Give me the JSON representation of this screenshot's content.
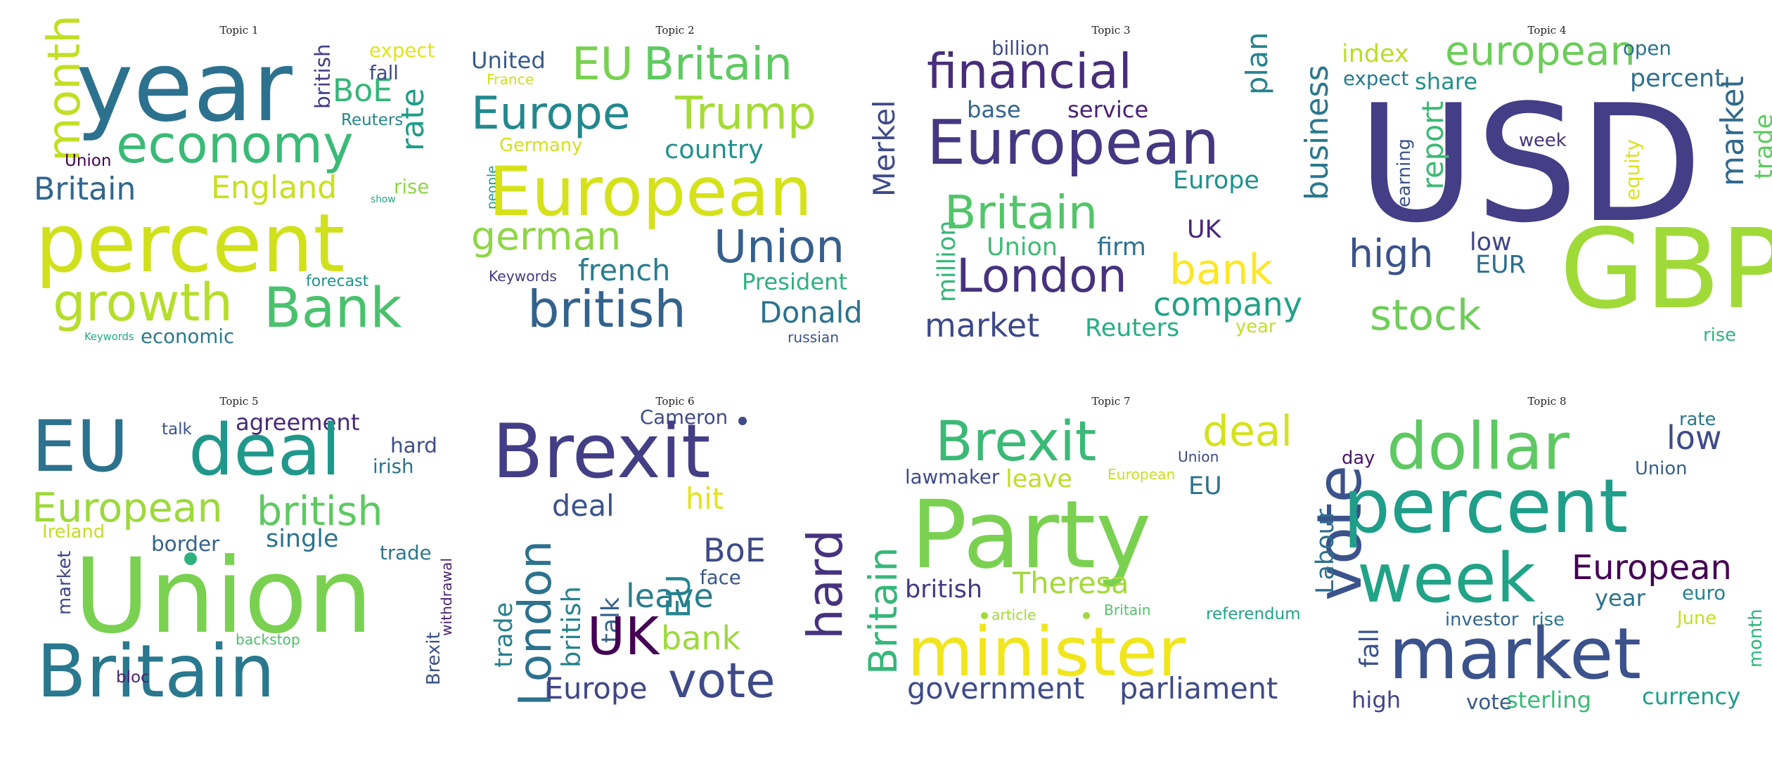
{
  "figure": {
    "panels": [
      {
        "title": "Topic 1",
        "words": [
          {
            "text": "year",
            "color": "#2c728e"
          },
          {
            "text": "percent",
            "color": "#d0e11c"
          },
          {
            "text": "economy",
            "color": "#3aba76"
          },
          {
            "text": "growth",
            "color": "#b5de2b"
          },
          {
            "text": "Bank",
            "color": "#4ac16d"
          },
          {
            "text": "Britain",
            "color": "#31668e"
          },
          {
            "text": "England",
            "color": "#c8e020"
          },
          {
            "text": "month",
            "color": "#c2df23"
          },
          {
            "text": "BoE",
            "color": "#35b779"
          },
          {
            "text": "rate",
            "color": "#1f9e89"
          },
          {
            "text": "british",
            "color": "#433e85"
          },
          {
            "text": "expect",
            "color": "#e2e418"
          },
          {
            "text": "fall",
            "color": "#3f4889"
          },
          {
            "text": "Reuters",
            "color": "#25858e"
          },
          {
            "text": "rise",
            "color": "#8fd744"
          },
          {
            "text": "Union",
            "color": "#440154"
          },
          {
            "text": "forecast",
            "color": "#1f968b"
          },
          {
            "text": "economic",
            "color": "#2a788e"
          },
          {
            "text": "Keywords",
            "color": "#22a785"
          },
          {
            "text": "show",
            "color": "#22a785"
          }
        ]
      },
      {
        "title": "Topic 2",
        "words": [
          {
            "text": "United",
            "color": "#365c8d"
          },
          {
            "text": "France",
            "color": "#cde11d"
          },
          {
            "text": "EU",
            "color": "#7ad151"
          },
          {
            "text": "Britain",
            "color": "#5ec962"
          },
          {
            "text": "Europe",
            "color": "#23888e"
          },
          {
            "text": "Trump",
            "color": "#a5db36"
          },
          {
            "text": "Germany",
            "color": "#d2e21b"
          },
          {
            "text": "country",
            "color": "#21918c"
          },
          {
            "text": "Merkel",
            "color": "#3e4a89"
          },
          {
            "text": "people",
            "color": "#1f9a8a"
          },
          {
            "text": "European",
            "color": "#d5e21a"
          },
          {
            "text": "german",
            "color": "#8ed645"
          },
          {
            "text": "Union",
            "color": "#355f8d"
          },
          {
            "text": "french",
            "color": "#287d8e"
          },
          {
            "text": "President",
            "color": "#2db27d"
          },
          {
            "text": "Keywords",
            "color": "#443983"
          },
          {
            "text": "british",
            "color": "#33638d"
          },
          {
            "text": "Donald",
            "color": "#2c728e"
          },
          {
            "text": "russian",
            "color": "#3b528b"
          }
        ]
      },
      {
        "title": "Topic 3",
        "words": [
          {
            "text": "billion",
            "color": "#3e4a89"
          },
          {
            "text": "financial",
            "color": "#472d7b"
          },
          {
            "text": "plan",
            "color": "#26828e"
          },
          {
            "text": "business",
            "color": "#2a788e"
          },
          {
            "text": "base",
            "color": "#32658e"
          },
          {
            "text": "service",
            "color": "#482173"
          },
          {
            "text": "European",
            "color": "#453781"
          },
          {
            "text": "Europe",
            "color": "#21918c"
          },
          {
            "text": "million",
            "color": "#35b779"
          },
          {
            "text": "Britain",
            "color": "#52c569"
          },
          {
            "text": "UK",
            "color": "#482475"
          },
          {
            "text": "Union",
            "color": "#3dbc74"
          },
          {
            "text": "firm",
            "color": "#2c728e"
          },
          {
            "text": "London",
            "color": "#46327e"
          },
          {
            "text": "bank",
            "color": "#fde725"
          },
          {
            "text": "company",
            "color": "#20a386"
          },
          {
            "text": "market",
            "color": "#3e4989"
          },
          {
            "text": "Reuters",
            "color": "#29af7f"
          },
          {
            "text": "year",
            "color": "#c0df25"
          }
        ]
      },
      {
        "title": "Topic 4",
        "words": [
          {
            "text": "index",
            "color": "#b8de29"
          },
          {
            "text": "european",
            "color": "#6ccd5a"
          },
          {
            "text": "open",
            "color": "#2c728e"
          },
          {
            "text": "expect",
            "color": "#2a788e"
          },
          {
            "text": "share",
            "color": "#21918c"
          },
          {
            "text": "percent",
            "color": "#2d708e"
          },
          {
            "text": "USD",
            "color": "#433e85"
          },
          {
            "text": "report",
            "color": "#3aba76"
          },
          {
            "text": "week",
            "color": "#46337f"
          },
          {
            "text": "equity",
            "color": "#dae319"
          },
          {
            "text": "market",
            "color": "#306a8e"
          },
          {
            "text": "trade",
            "color": "#5ec962"
          },
          {
            "text": "earning",
            "color": "#3b528b"
          },
          {
            "text": "high",
            "color": "#3b528b"
          },
          {
            "text": "low",
            "color": "#414487"
          },
          {
            "text": "EUR",
            "color": "#2e6f8e"
          },
          {
            "text": "GBP",
            "color": "#a0da39"
          },
          {
            "text": "stock",
            "color": "#6ece58"
          },
          {
            "text": "rise",
            "color": "#2fb47c"
          }
        ]
      },
      {
        "title": "Topic 5",
        "words": [
          {
            "text": "EU",
            "color": "#2c728e"
          },
          {
            "text": "talk",
            "color": "#3b528b"
          },
          {
            "text": "agreement",
            "color": "#482878"
          },
          {
            "text": "deal",
            "color": "#1f988b"
          },
          {
            "text": "hard",
            "color": "#3d4d8a"
          },
          {
            "text": "irish",
            "color": "#2c728e"
          },
          {
            "text": "European",
            "color": "#9dd93b"
          },
          {
            "text": "british",
            "color": "#5ec962"
          },
          {
            "text": "Ireland",
            "color": "#c2df23"
          },
          {
            "text": "border",
            "color": "#33638d"
          },
          {
            "text": "single",
            "color": "#2c738e"
          },
          {
            "text": "trade",
            "color": "#2a788e"
          },
          {
            "text": "market",
            "color": "#404588"
          },
          {
            "text": "Union",
            "color": "#7ad151"
          },
          {
            "text": "withdrawal",
            "color": "#482173"
          },
          {
            "text": "backstop",
            "color": "#4ac16d"
          },
          {
            "text": "Britain",
            "color": "#2a788e"
          },
          {
            "text": "bloc",
            "color": "#482475"
          },
          {
            "text": "Brexit",
            "color": "#3b518b"
          }
        ]
      },
      {
        "title": "Topic 6",
        "words": [
          {
            "text": "Cameron",
            "color": "#3e4a89"
          },
          {
            "text": "Brexit",
            "color": "#433e85"
          },
          {
            "text": "Britain",
            "color": "#35b779"
          },
          {
            "text": "deal",
            "color": "#3b528b"
          },
          {
            "text": "hit",
            "color": "#e2e418"
          },
          {
            "text": "London",
            "color": "#2c728e"
          },
          {
            "text": "british",
            "color": "#26828e"
          },
          {
            "text": "talk",
            "color": "#355f8d"
          },
          {
            "text": "EU",
            "color": "#25848e"
          },
          {
            "text": "BoE",
            "color": "#3e4a89"
          },
          {
            "text": "face",
            "color": "#39568c"
          },
          {
            "text": "leave",
            "color": "#287d8e"
          },
          {
            "text": "hard",
            "color": "#46327e"
          },
          {
            "text": "trade",
            "color": "#27808e"
          },
          {
            "text": "UK",
            "color": "#440154"
          },
          {
            "text": "bank",
            "color": "#9dd93b"
          },
          {
            "text": "Europe",
            "color": "#404588"
          },
          {
            "text": "vote",
            "color": "#3e4a89"
          }
        ]
      },
      {
        "title": "Topic 7",
        "words": [
          {
            "text": "Brexit",
            "color": "#3aba76"
          },
          {
            "text": "deal",
            "color": "#d5e21a"
          },
          {
            "text": "lawmaker",
            "color": "#3e4a89"
          },
          {
            "text": "leave",
            "color": "#bddf26"
          },
          {
            "text": "European",
            "color": "#c8e020"
          },
          {
            "text": "Union",
            "color": "#3e4a89"
          },
          {
            "text": "EU",
            "color": "#2c728e"
          },
          {
            "text": "vote",
            "color": "#3b528b"
          },
          {
            "text": "Labour",
            "color": "#2d708e"
          },
          {
            "text": "Party",
            "color": "#7ad151"
          },
          {
            "text": "british",
            "color": "#443983"
          },
          {
            "text": "Theresa",
            "color": "#a2da37"
          },
          {
            "text": "article",
            "color": "#a2da37"
          },
          {
            "text": "Britain",
            "color": "#52c569"
          },
          {
            "text": "referendum",
            "color": "#20a386"
          },
          {
            "text": "minister",
            "color": "#f1e51d"
          },
          {
            "text": "government",
            "color": "#3e4a89"
          },
          {
            "text": "parliament",
            "color": "#3e4a89"
          }
        ]
      },
      {
        "title": "Topic 8",
        "words": [
          {
            "text": "dollar",
            "color": "#5ec962"
          },
          {
            "text": "rate",
            "color": "#2a788e"
          },
          {
            "text": "low",
            "color": "#3e4a89"
          },
          {
            "text": "day",
            "color": "#481769"
          },
          {
            "text": "Union",
            "color": "#355f8d"
          },
          {
            "text": "percent",
            "color": "#1f9e89"
          },
          {
            "text": "week",
            "color": "#20a386"
          },
          {
            "text": "European",
            "color": "#440154"
          },
          {
            "text": "year",
            "color": "#2c728e"
          },
          {
            "text": "euro",
            "color": "#26828e"
          },
          {
            "text": "June",
            "color": "#c2df23"
          },
          {
            "text": "investor",
            "color": "#32648e"
          },
          {
            "text": "rise",
            "color": "#2a788e"
          },
          {
            "text": "market",
            "color": "#3b528b"
          },
          {
            "text": "fall",
            "color": "#3b528b"
          },
          {
            "text": "month",
            "color": "#2fb47c"
          },
          {
            "text": "high",
            "color": "#414487"
          },
          {
            "text": "vote",
            "color": "#38598c"
          },
          {
            "text": "sterling",
            "color": "#3aba76"
          },
          {
            "text": "currency",
            "color": "#1f9e89"
          }
        ]
      }
    ]
  }
}
